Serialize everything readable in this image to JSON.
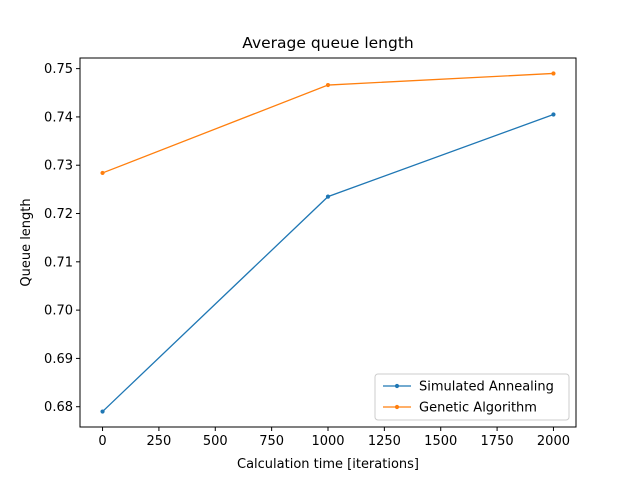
{
  "chart_data": {
    "type": "line",
    "title": "Average queue length",
    "xlabel": "Calculation time [iterations]",
    "ylabel": "Queue length",
    "xlim": [
      -100,
      2100
    ],
    "ylim": [
      0.6758,
      0.7522
    ],
    "xticks": [
      0,
      250,
      500,
      750,
      1000,
      1250,
      1500,
      1750,
      2000
    ],
    "yticks": [
      0.68,
      0.69,
      0.7,
      0.71,
      0.72,
      0.73,
      0.74,
      0.75
    ],
    "ytick_labels": [
      "0.68",
      "0.69",
      "0.70",
      "0.71",
      "0.72",
      "0.73",
      "0.74",
      "0.75"
    ],
    "grid": false,
    "legend_position": "lower right",
    "x": [
      0,
      1000,
      2000
    ],
    "series": [
      {
        "name": "Simulated Annealing",
        "color": "#1f77b4",
        "values": [
          0.679,
          0.7235,
          0.7405
        ]
      },
      {
        "name": "Genetic Algorithm",
        "color": "#ff7f0e",
        "values": [
          0.7284,
          0.7466,
          0.749
        ]
      }
    ]
  }
}
